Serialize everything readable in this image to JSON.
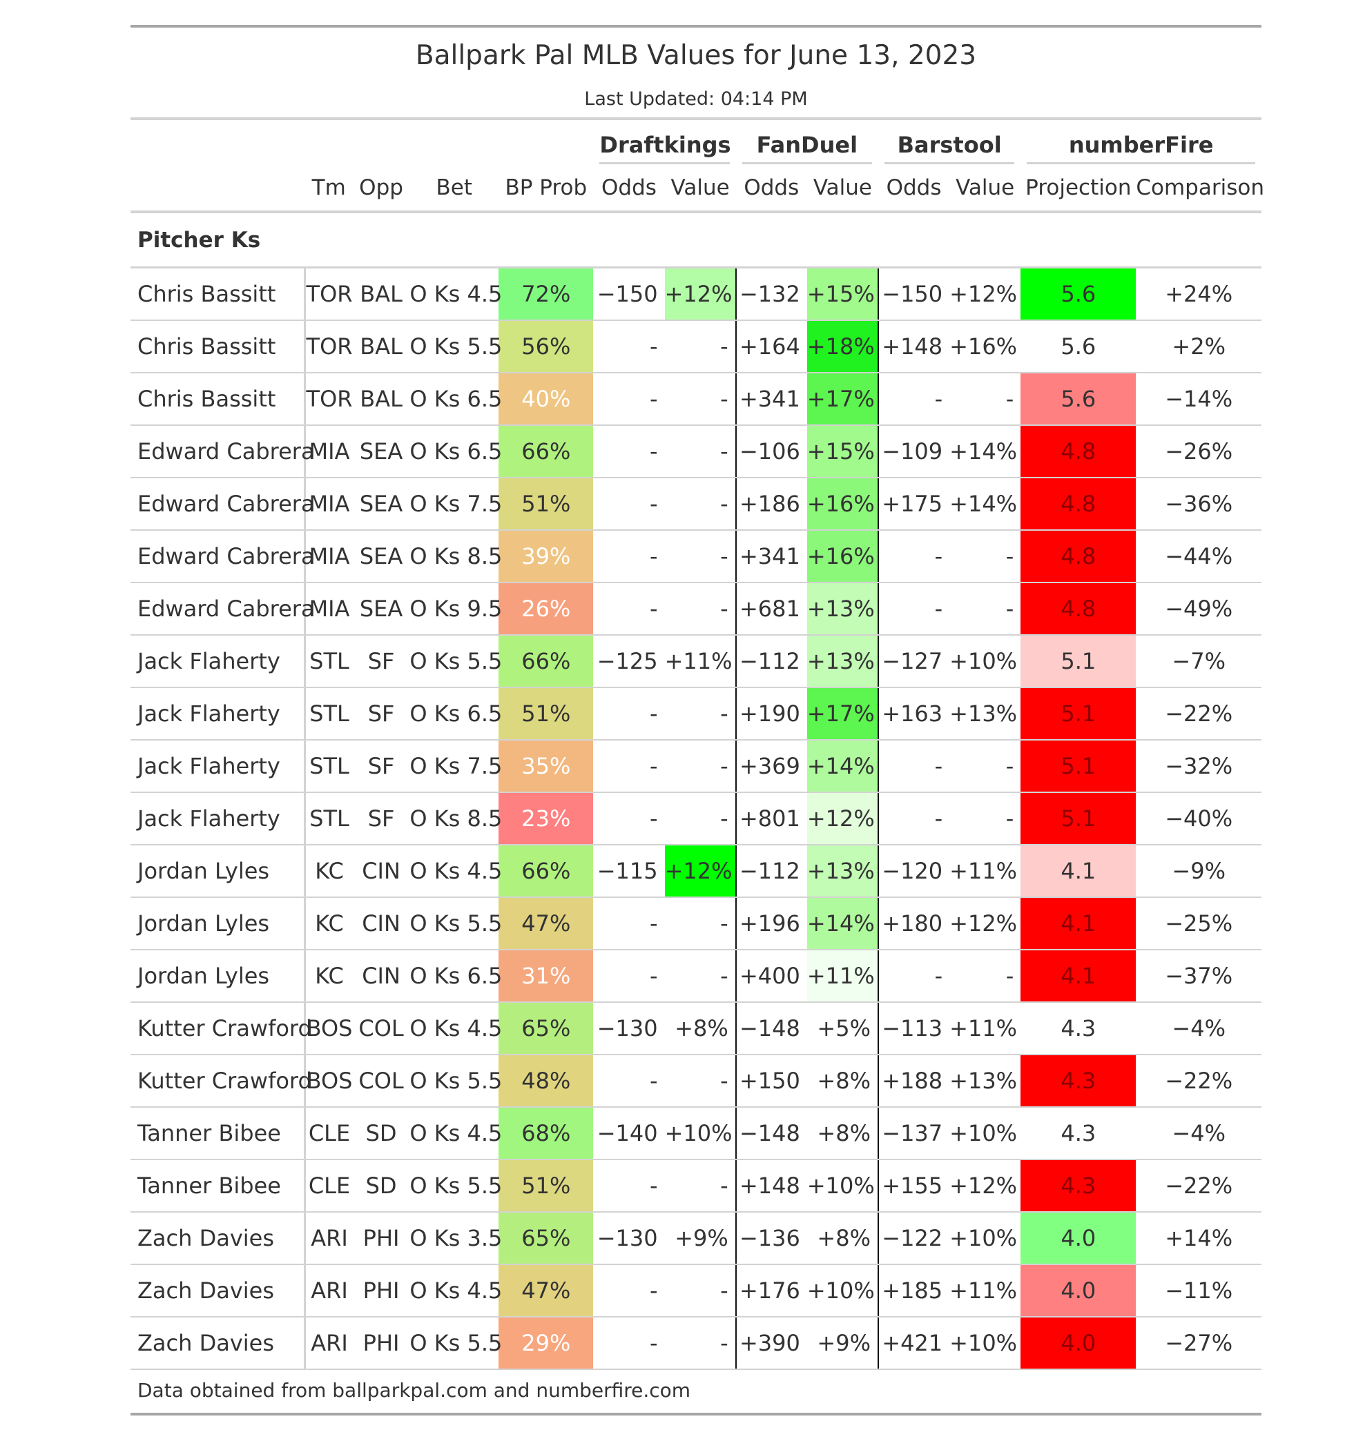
{
  "title": "Ballpark Pal MLB Values for June 13, 2023",
  "subtitle": "Last Updated: 04:14 PM",
  "spanners": {
    "draftkings": "Draftkings",
    "fanduel": "FanDuel",
    "barstool": "Barstool",
    "numberfire": "numberFire"
  },
  "columns": {
    "tm": "Tm",
    "opp": "Opp",
    "bet": "Bet",
    "bp_prob": "BP Prob",
    "dk_odds": "Odds",
    "dk_value": "Value",
    "fd_odds": "Odds",
    "fd_value": "Value",
    "bs_odds": "Odds",
    "bs_value": "Value",
    "projection": "Projection",
    "comparison": "Comparison"
  },
  "group_label": "Pitcher Ks",
  "colors": {
    "rule_dark": "#a6a6a6",
    "rule_light": "#d3d3d3",
    "divider": "#111111",
    "text": "#333333",
    "text_on_dark": "#ffffff"
  },
  "rows": [
    {
      "name": "Chris Bassitt",
      "tm": "TOR",
      "opp": "BAL",
      "bet": "O Ks 4.5",
      "bp_prob": "72%",
      "dk_odds": "−150",
      "dk_value": "+12%",
      "fd_odds": "−132",
      "fd_value": "+15%",
      "bs_odds": "−150",
      "bs_value": "+12%",
      "projection": "5.6",
      "comparison": "+24%",
      "bp_bg": "#80fb80",
      "dk_value_bg": "#b2fda6",
      "fd_value_bg": "#a0fa8c",
      "bs_value_bg": "",
      "proj_bg": "#00ff00",
      "proj_fg": "#333333"
    },
    {
      "name": "Chris Bassitt",
      "tm": "TOR",
      "opp": "BAL",
      "bet": "O Ks 5.5",
      "bp_prob": "56%",
      "dk_odds": "-",
      "dk_value": "-",
      "fd_odds": "+164",
      "fd_value": "+18%",
      "bs_odds": "+148",
      "bs_value": "+16%",
      "projection": "5.6",
      "comparison": "+2%",
      "bp_bg": "#d0e480",
      "dk_value_bg": "",
      "fd_value_bg": "#1ff21f",
      "bs_value_bg": "",
      "proj_bg": "",
      "proj_fg": "#333333"
    },
    {
      "name": "Chris Bassitt",
      "tm": "TOR",
      "opp": "BAL",
      "bet": "O Ks 6.5",
      "bp_prob": "40%",
      "dk_odds": "-",
      "dk_value": "-",
      "fd_odds": "+341",
      "fd_value": "+17%",
      "bs_odds": "-",
      "bs_value": "-",
      "projection": "5.6",
      "comparison": "−14%",
      "bp_bg": "#eec582",
      "bp_fg": "#ffffff",
      "dk_value_bg": "",
      "fd_value_bg": "#5df54f",
      "bs_value_bg": "",
      "proj_bg": "#ff8080",
      "proj_fg": "#333333"
    },
    {
      "name": "Edward Cabrera",
      "tm": "MIA",
      "opp": "SEA",
      "bet": "O Ks 6.5",
      "bp_prob": "66%",
      "dk_odds": "-",
      "dk_value": "-",
      "fd_odds": "−106",
      "fd_value": "+15%",
      "bs_odds": "−109",
      "bs_value": "+14%",
      "projection": "4.8",
      "comparison": "−26%",
      "bp_bg": "#b0f27e",
      "dk_value_bg": "",
      "fd_value_bg": "#a0fa8c",
      "bs_value_bg": "",
      "proj_bg": "#ff0000",
      "proj_fg": "#8b0000"
    },
    {
      "name": "Edward Cabrera",
      "tm": "MIA",
      "opp": "SEA",
      "bet": "O Ks 7.5",
      "bp_prob": "51%",
      "dk_odds": "-",
      "dk_value": "-",
      "fd_odds": "+186",
      "fd_value": "+16%",
      "bs_odds": "+175",
      "bs_value": "+14%",
      "projection": "4.8",
      "comparison": "−36%",
      "bp_bg": "#dcd880",
      "dk_value_bg": "",
      "fd_value_bg": "#8cf87a",
      "bs_value_bg": "",
      "proj_bg": "#ff0000",
      "proj_fg": "#8b0000"
    },
    {
      "name": "Edward Cabrera",
      "tm": "MIA",
      "opp": "SEA",
      "bet": "O Ks 8.5",
      "bp_prob": "39%",
      "dk_odds": "-",
      "dk_value": "-",
      "fd_odds": "+341",
      "fd_value": "+16%",
      "bs_odds": "-",
      "bs_value": "-",
      "projection": "4.8",
      "comparison": "−44%",
      "bp_bg": "#efc482",
      "bp_fg": "#ffffff",
      "dk_value_bg": "",
      "fd_value_bg": "#8cf87a",
      "bs_value_bg": "",
      "proj_bg": "#ff0000",
      "proj_fg": "#8b0000"
    },
    {
      "name": "Edward Cabrera",
      "tm": "MIA",
      "opp": "SEA",
      "bet": "O Ks 9.5",
      "bp_prob": "26%",
      "dk_odds": "-",
      "dk_value": "-",
      "fd_odds": "+681",
      "fd_value": "+13%",
      "bs_odds": "-",
      "bs_value": "-",
      "projection": "4.8",
      "comparison": "−49%",
      "bp_bg": "#f7a07e",
      "bp_fg": "#ffffff",
      "dk_value_bg": "",
      "fd_value_bg": "#c3fcb5",
      "bs_value_bg": "",
      "proj_bg": "#ff0000",
      "proj_fg": "#8b0000"
    },
    {
      "name": "Jack Flaherty",
      "tm": "STL",
      "opp": "SF",
      "bet": "O Ks 5.5",
      "bp_prob": "66%",
      "dk_odds": "−125",
      "dk_value": "+11%",
      "fd_odds": "−112",
      "fd_value": "+13%",
      "bs_odds": "−127",
      "bs_value": "+10%",
      "projection": "5.1",
      "comparison": "−7%",
      "bp_bg": "#b0f27e",
      "dk_value_bg": "",
      "fd_value_bg": "#c3fcb5",
      "bs_value_bg": "",
      "proj_bg": "#ffcccc",
      "proj_fg": "#333333"
    },
    {
      "name": "Jack Flaherty",
      "tm": "STL",
      "opp": "SF",
      "bet": "O Ks 6.5",
      "bp_prob": "51%",
      "dk_odds": "-",
      "dk_value": "-",
      "fd_odds": "+190",
      "fd_value": "+17%",
      "bs_odds": "+163",
      "bs_value": "+13%",
      "projection": "5.1",
      "comparison": "−22%",
      "bp_bg": "#dcd880",
      "dk_value_bg": "",
      "fd_value_bg": "#5df54f",
      "bs_value_bg": "",
      "proj_bg": "#ff0000",
      "proj_fg": "#8b0000"
    },
    {
      "name": "Jack Flaherty",
      "tm": "STL",
      "opp": "SF",
      "bet": "O Ks 7.5",
      "bp_prob": "35%",
      "dk_odds": "-",
      "dk_value": "-",
      "fd_odds": "+369",
      "fd_value": "+14%",
      "bs_odds": "-",
      "bs_value": "-",
      "projection": "5.1",
      "comparison": "−32%",
      "bp_bg": "#f2b880",
      "bp_fg": "#ffffff",
      "dk_value_bg": "",
      "fd_value_bg": "#b0fa9e",
      "bs_value_bg": "",
      "proj_bg": "#ff0000",
      "proj_fg": "#8b0000"
    },
    {
      "name": "Jack Flaherty",
      "tm": "STL",
      "opp": "SF",
      "bet": "O Ks 8.5",
      "bp_prob": "23%",
      "dk_odds": "-",
      "dk_value": "-",
      "fd_odds": "+801",
      "fd_value": "+12%",
      "bs_odds": "-",
      "bs_value": "-",
      "projection": "5.1",
      "comparison": "−40%",
      "bp_bg": "#ff8080",
      "bp_fg": "#ffffff",
      "dk_value_bg": "",
      "fd_value_bg": "#e2fedb",
      "bs_value_bg": "",
      "proj_bg": "#ff0000",
      "proj_fg": "#8b0000"
    },
    {
      "name": "Jordan Lyles",
      "tm": "KC",
      "opp": "CIN",
      "bet": "O Ks 4.5",
      "bp_prob": "66%",
      "dk_odds": "−115",
      "dk_value": "+12%",
      "fd_odds": "−112",
      "fd_value": "+13%",
      "bs_odds": "−120",
      "bs_value": "+11%",
      "projection": "4.1",
      "comparison": "−9%",
      "bp_bg": "#b0f27e",
      "dk_value_bg": "#00ff00",
      "fd_value_bg": "#c3fcb5",
      "bs_value_bg": "",
      "proj_bg": "#ffcccc",
      "proj_fg": "#333333"
    },
    {
      "name": "Jordan Lyles",
      "tm": "KC",
      "opp": "CIN",
      "bet": "O Ks 5.5",
      "bp_prob": "47%",
      "dk_odds": "-",
      "dk_value": "-",
      "fd_odds": "+196",
      "fd_value": "+14%",
      "bs_odds": "+180",
      "bs_value": "+12%",
      "projection": "4.1",
      "comparison": "−25%",
      "bp_bg": "#e2d27f",
      "dk_value_bg": "",
      "fd_value_bg": "#b0fa9e",
      "bs_value_bg": "",
      "proj_bg": "#ff0000",
      "proj_fg": "#8b0000"
    },
    {
      "name": "Jordan Lyles",
      "tm": "KC",
      "opp": "CIN",
      "bet": "O Ks 6.5",
      "bp_prob": "31%",
      "dk_odds": "-",
      "dk_value": "-",
      "fd_odds": "+400",
      "fd_value": "+11%",
      "bs_odds": "-",
      "bs_value": "-",
      "projection": "4.1",
      "comparison": "−37%",
      "bp_bg": "#f5a87e",
      "bp_fg": "#ffffff",
      "dk_value_bg": "",
      "fd_value_bg": "#f0fff0",
      "bs_value_bg": "",
      "proj_bg": "#ff0000",
      "proj_fg": "#8b0000"
    },
    {
      "name": "Kutter Crawford",
      "tm": "BOS",
      "opp": "COL",
      "bet": "O Ks 4.5",
      "bp_prob": "65%",
      "dk_odds": "−130",
      "dk_value": "+8%",
      "fd_odds": "−148",
      "fd_value": "+5%",
      "bs_odds": "−113",
      "bs_value": "+11%",
      "projection": "4.3",
      "comparison": "−4%",
      "bp_bg": "#b4ee7e",
      "dk_value_bg": "",
      "fd_value_bg": "",
      "bs_value_bg": "",
      "proj_bg": "",
      "proj_fg": "#333333"
    },
    {
      "name": "Kutter Crawford",
      "tm": "BOS",
      "opp": "COL",
      "bet": "O Ks 5.5",
      "bp_prob": "48%",
      "dk_odds": "-",
      "dk_value": "-",
      "fd_odds": "+150",
      "fd_value": "+8%",
      "bs_odds": "+188",
      "bs_value": "+13%",
      "projection": "4.3",
      "comparison": "−22%",
      "bp_bg": "#e0d47f",
      "dk_value_bg": "",
      "fd_value_bg": "",
      "bs_value_bg": "",
      "proj_bg": "#ff0000",
      "proj_fg": "#8b0000"
    },
    {
      "name": "Tanner Bibee",
      "tm": "CLE",
      "opp": "SD",
      "bet": "O Ks 4.5",
      "bp_prob": "68%",
      "dk_odds": "−140",
      "dk_value": "+10%",
      "fd_odds": "−148",
      "fd_value": "+8%",
      "bs_odds": "−137",
      "bs_value": "+10%",
      "projection": "4.3",
      "comparison": "−4%",
      "bp_bg": "#a0f67e",
      "dk_value_bg": "",
      "fd_value_bg": "",
      "bs_value_bg": "",
      "proj_bg": "",
      "proj_fg": "#333333"
    },
    {
      "name": "Tanner Bibee",
      "tm": "CLE",
      "opp": "SD",
      "bet": "O Ks 5.5",
      "bp_prob": "51%",
      "dk_odds": "-",
      "dk_value": "-",
      "fd_odds": "+148",
      "fd_value": "+10%",
      "bs_odds": "+155",
      "bs_value": "+12%",
      "projection": "4.3",
      "comparison": "−22%",
      "bp_bg": "#dcd880",
      "dk_value_bg": "",
      "fd_value_bg": "",
      "bs_value_bg": "",
      "proj_bg": "#ff0000",
      "proj_fg": "#8b0000"
    },
    {
      "name": "Zach Davies",
      "tm": "ARI",
      "opp": "PHI",
      "bet": "O Ks 3.5",
      "bp_prob": "65%",
      "dk_odds": "−130",
      "dk_value": "+9%",
      "fd_odds": "−136",
      "fd_value": "+8%",
      "bs_odds": "−122",
      "bs_value": "+10%",
      "projection": "4.0",
      "comparison": "+14%",
      "bp_bg": "#b4ee7e",
      "dk_value_bg": "",
      "fd_value_bg": "",
      "bs_value_bg": "",
      "proj_bg": "#80ff80",
      "proj_fg": "#333333"
    },
    {
      "name": "Zach Davies",
      "tm": "ARI",
      "opp": "PHI",
      "bet": "O Ks 4.5",
      "bp_prob": "47%",
      "dk_odds": "-",
      "dk_value": "-",
      "fd_odds": "+176",
      "fd_value": "+10%",
      "bs_odds": "+185",
      "bs_value": "+11%",
      "projection": "4.0",
      "comparison": "−11%",
      "bp_bg": "#e2d27f",
      "dk_value_bg": "",
      "fd_value_bg": "",
      "bs_value_bg": "",
      "proj_bg": "#ff8080",
      "proj_fg": "#333333"
    },
    {
      "name": "Zach Davies",
      "tm": "ARI",
      "opp": "PHI",
      "bet": "O Ks 5.5",
      "bp_prob": "29%",
      "dk_odds": "-",
      "dk_value": "-",
      "fd_odds": "+390",
      "fd_value": "+9%",
      "bs_odds": "+421",
      "bs_value": "+10%",
      "projection": "4.0",
      "comparison": "−27%",
      "bp_bg": "#f7a67e",
      "bp_fg": "#ffffff",
      "dk_value_bg": "",
      "fd_value_bg": "",
      "bs_value_bg": "",
      "proj_bg": "#ff0000",
      "proj_fg": "#8b0000"
    }
  ],
  "footer": "Data obtained from ballparkpal.com and numberfire.com"
}
